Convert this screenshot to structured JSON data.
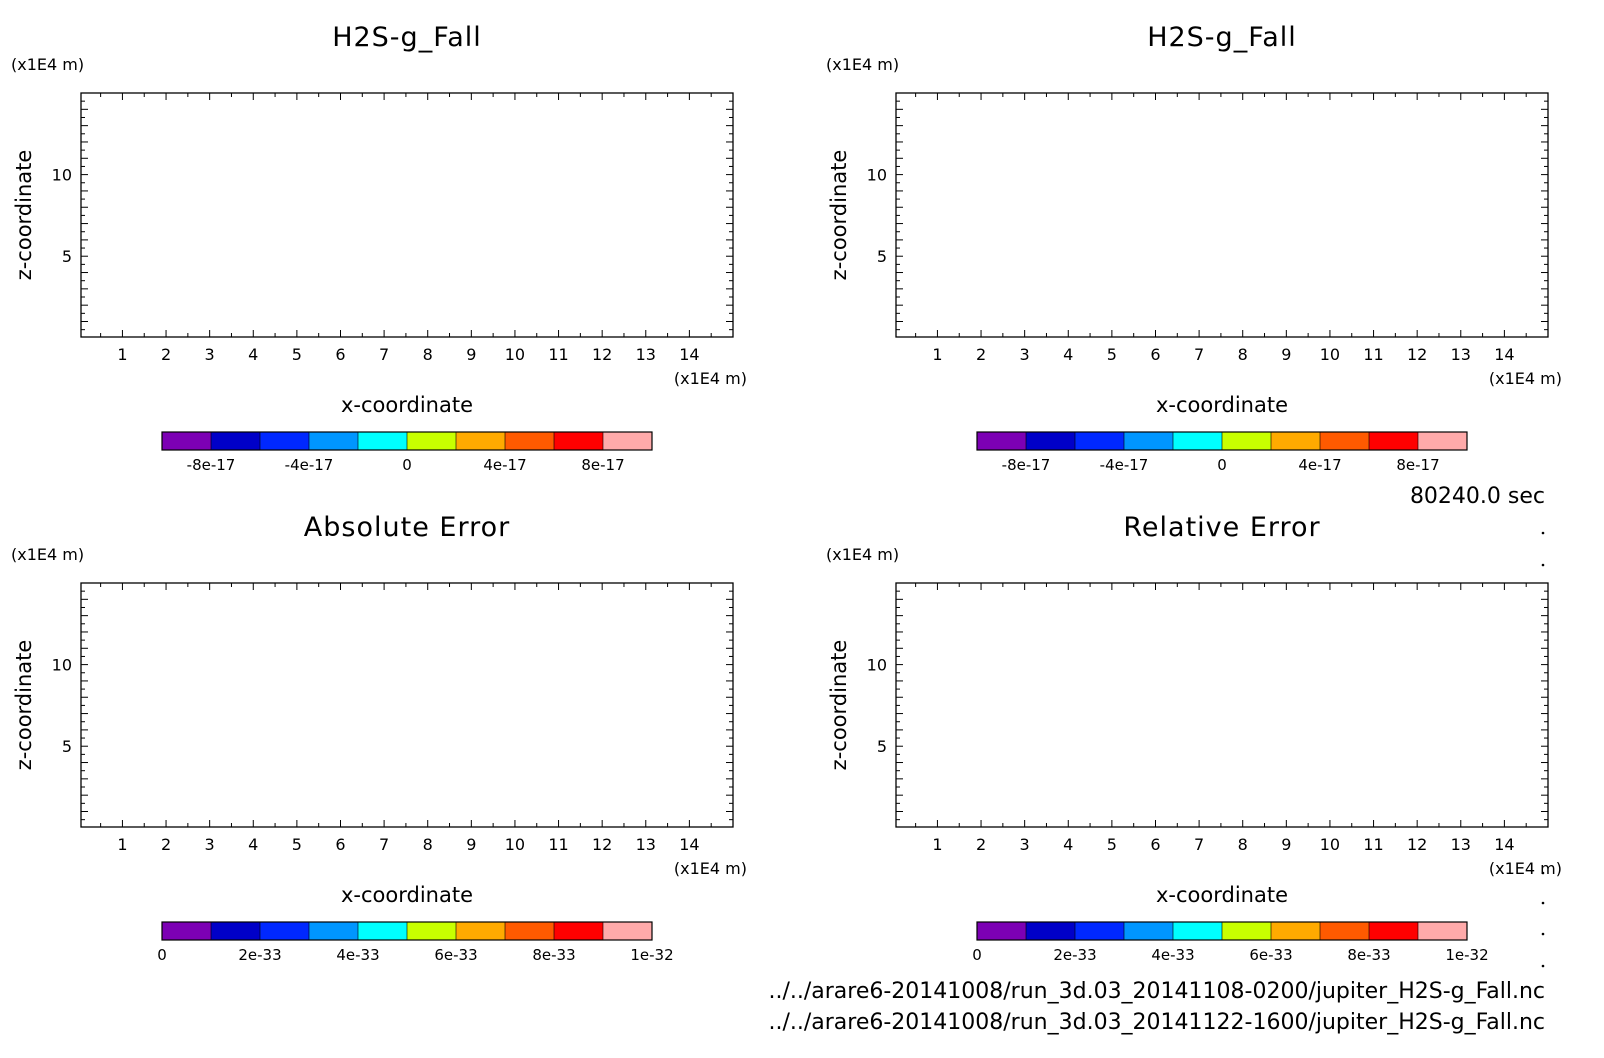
{
  "figure": {
    "time_label": "80240.0 sec",
    "file_paths": [
      "../../arare6-20141008/run_3d.03_20141108-0200/jupiter_H2S-g_Fall.nc",
      "../../arare6-20141008/run_3d.03_20141122-1600/jupiter_H2S-g_Fall.nc"
    ]
  },
  "chart_data": [
    {
      "type": "heatmap",
      "title": "H2S-g_Fall",
      "xlabel": "x-coordinate",
      "ylabel": "z-coordinate",
      "x_unit": "(x1E4 m)",
      "y_unit": "(x1E4 m)",
      "xlim": [
        0.05,
        15.0
      ],
      "ylim": [
        0.05,
        15.0
      ],
      "x_ticks": [
        "1",
        "2",
        "3",
        "4",
        "5",
        "6",
        "7",
        "8",
        "9",
        "10",
        "11",
        "12",
        "13",
        "14"
      ],
      "y_ticks": [
        "5",
        "10"
      ],
      "values": [],
      "colorbar": {
        "colors": [
          "#7c00b4",
          "#0000c8",
          "#0028ff",
          "#0096ff",
          "#00ffff",
          "#c8ff00",
          "#ffaa00",
          "#ff5a00",
          "#ff0000",
          "#ffaaaa"
        ],
        "labels": [
          "-8e-17",
          "-4e-17",
          "0",
          "4e-17",
          "8e-17"
        ],
        "label_positions": [
          1,
          3,
          5,
          7,
          9
        ]
      }
    },
    {
      "type": "heatmap",
      "title": "H2S-g_Fall",
      "xlabel": "x-coordinate",
      "ylabel": "z-coordinate",
      "x_unit": "(x1E4 m)",
      "y_unit": "(x1E4 m)",
      "xlim": [
        0.05,
        15.0
      ],
      "ylim": [
        0.05,
        15.0
      ],
      "x_ticks": [
        "1",
        "2",
        "3",
        "4",
        "5",
        "6",
        "7",
        "8",
        "9",
        "10",
        "11",
        "12",
        "13",
        "14"
      ],
      "y_ticks": [
        "5",
        "10"
      ],
      "values": [],
      "colorbar": {
        "colors": [
          "#7c00b4",
          "#0000c8",
          "#0028ff",
          "#0096ff",
          "#00ffff",
          "#c8ff00",
          "#ffaa00",
          "#ff5a00",
          "#ff0000",
          "#ffaaaa"
        ],
        "labels": [
          "-8e-17",
          "-4e-17",
          "0",
          "4e-17",
          "8e-17"
        ],
        "label_positions": [
          1,
          3,
          5,
          7,
          9
        ]
      }
    },
    {
      "type": "heatmap",
      "title": "Absolute Error",
      "xlabel": "x-coordinate",
      "ylabel": "z-coordinate",
      "x_unit": "(x1E4 m)",
      "y_unit": "(x1E4 m)",
      "xlim": [
        0.05,
        15.0
      ],
      "ylim": [
        0.05,
        15.0
      ],
      "x_ticks": [
        "1",
        "2",
        "3",
        "4",
        "5",
        "6",
        "7",
        "8",
        "9",
        "10",
        "11",
        "12",
        "13",
        "14"
      ],
      "y_ticks": [
        "5",
        "10"
      ],
      "values": [],
      "colorbar": {
        "colors": [
          "#7c00b4",
          "#0000c8",
          "#0028ff",
          "#0096ff",
          "#00ffff",
          "#c8ff00",
          "#ffaa00",
          "#ff5a00",
          "#ff0000",
          "#ffaaaa"
        ],
        "labels": [
          "0",
          "2e-33",
          "4e-33",
          "6e-33",
          "8e-33",
          "1e-32"
        ],
        "label_positions": [
          0,
          2,
          4,
          6,
          8,
          10
        ]
      }
    },
    {
      "type": "heatmap",
      "title": "Relative Error",
      "xlabel": "x-coordinate",
      "ylabel": "z-coordinate",
      "x_unit": "(x1E4 m)",
      "y_unit": "(x1E4 m)",
      "xlim": [
        0.05,
        15.0
      ],
      "ylim": [
        0.05,
        15.0
      ],
      "x_ticks": [
        "1",
        "2",
        "3",
        "4",
        "5",
        "6",
        "7",
        "8",
        "9",
        "10",
        "11",
        "12",
        "13",
        "14"
      ],
      "y_ticks": [
        "5",
        "10"
      ],
      "values": [],
      "colorbar": {
        "colors": [
          "#7c00b4",
          "#0000c8",
          "#0028ff",
          "#0096ff",
          "#00ffff",
          "#c8ff00",
          "#ffaa00",
          "#ff5a00",
          "#ff0000",
          "#ffaaaa"
        ],
        "labels": [
          "0",
          "2e-33",
          "4e-33",
          "6e-33",
          "8e-33",
          "1e-32"
        ],
        "label_positions": [
          0,
          2,
          4,
          6,
          8,
          10
        ]
      }
    }
  ]
}
